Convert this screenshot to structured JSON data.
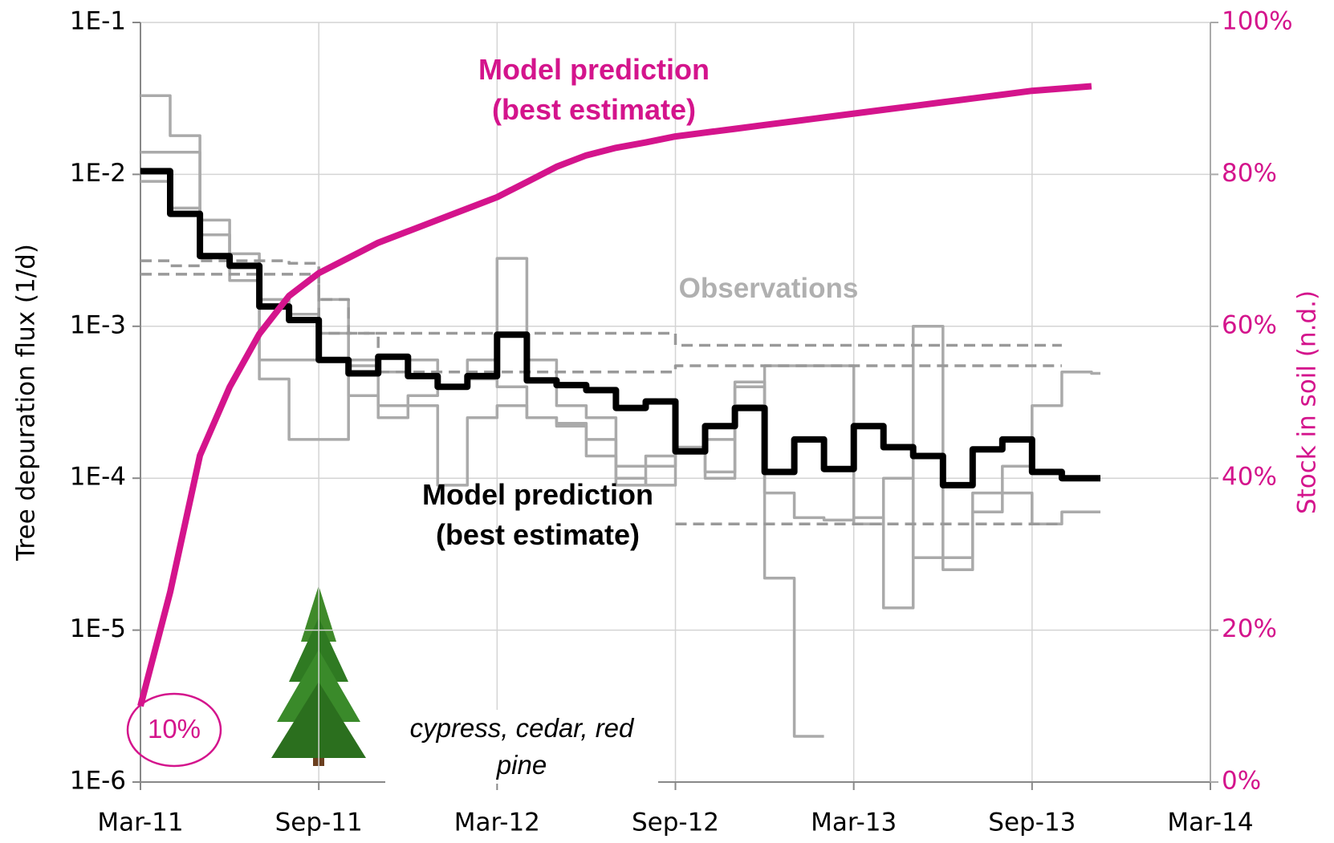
{
  "chart_data": {
    "type": "line",
    "y_label": "Tree depuration  flux (1/d)",
    "y2_label": "Stock in soil (n.d.)",
    "yscale": "log",
    "grid": true,
    "x": [
      "2011-03",
      "2011-04",
      "2011-05",
      "2011-06",
      "2011-07",
      "2011-08",
      "2011-09",
      "2011-10",
      "2011-11",
      "2011-12",
      "2012-01",
      "2012-02",
      "2012-03",
      "2012-04",
      "2012-05",
      "2012-06",
      "2012-07",
      "2012-08",
      "2012-09",
      "2012-10",
      "2012-11",
      "2012-12",
      "2013-01",
      "2013-02",
      "2013-03",
      "2013-04",
      "2013-05",
      "2013-06",
      "2013-07",
      "2013-08",
      "2013-09",
      "2013-10",
      "2013-11"
    ],
    "xlim": [
      "2011-03",
      "2014-03"
    ],
    "xticks": [
      {
        "value": "2011-03",
        "label": "Mar-11"
      },
      {
        "value": "2011-09",
        "label": "Sep-11"
      },
      {
        "value": "2012-03",
        "label": "Mar-12"
      },
      {
        "value": "2012-09",
        "label": "Sep-12"
      },
      {
        "value": "2013-03",
        "label": "Mar-13"
      },
      {
        "value": "2013-09",
        "label": "Sep-13"
      },
      {
        "value": "2014-03",
        "label": "Mar-14"
      }
    ],
    "ylim": [
      1e-06,
      0.1
    ],
    "yticks": [
      {
        "value": 1e-06,
        "label": "1E-6"
      },
      {
        "value": 1e-05,
        "label": "1E-5"
      },
      {
        "value": 0.0001,
        "label": "1E-4"
      },
      {
        "value": 0.001,
        "label": "1E-3"
      },
      {
        "value": 0.01,
        "label": "1E-2"
      },
      {
        "value": 0.1,
        "label": "1E-1"
      }
    ],
    "y2lim": [
      0,
      100
    ],
    "y2ticks": [
      {
        "value": 0,
        "label": "0%"
      },
      {
        "value": 20,
        "label": "20%"
      },
      {
        "value": 40,
        "label": "40%"
      },
      {
        "value": 60,
        "label": "60%"
      },
      {
        "value": 80,
        "label": "80%"
      },
      {
        "value": 100,
        "label": "100%"
      }
    ],
    "series": [
      {
        "color": "#aaaaaa",
        "step": true,
        "dash": false,
        "values": [
          0.014,
          0.014,
          0.005,
          0.003,
          0.0015,
          0.0012,
          0.0009,
          0.0006,
          0.0005,
          0.0006,
          0.0004,
          0.0006,
          0.0028,
          0.0006,
          0.0003,
          0.00025,
          0.00012,
          0.00014,
          0.00015,
          0.0001,
          0.0004,
          2.2e-05,
          2e-06,
          null,
          null,
          null,
          null,
          null,
          null,
          null,
          null,
          null,
          null
        ]
      },
      {
        "color": "#aaaaaa",
        "step": true,
        "dash": false,
        "values": [
          0.033,
          0.018,
          0.004,
          0.0025,
          0.00045,
          0.00018,
          0.00018,
          0.00055,
          0.0003,
          0.0003,
          9e-05,
          0.00025,
          0.0003,
          0.00025,
          0.00022,
          0.00018,
          9e-05,
          0.00012,
          0.00015,
          0.00018,
          0.00043,
          8e-05,
          5.5e-05,
          5.3e-05,
          5.5e-05,
          1.4e-05,
          0.001,
          3e-05,
          8e-05,
          0.00012,
          0.0003,
          0.0005,
          0.00049
        ]
      },
      {
        "color": "#aaaaaa",
        "step": true,
        "dash": false,
        "values": [
          0.009,
          0.006,
          0.004,
          0.002,
          0.0006,
          0.0006,
          0.0015,
          0.00035,
          0.00025,
          0.00035,
          0.0004,
          0.00045,
          0.0004,
          0.00025,
          0.00023,
          0.00014,
          0.0001,
          9e-05,
          0.00016,
          0.00011,
          0.0003,
          0.00055,
          0.00055,
          0.00055,
          5e-05,
          0.0001,
          3e-05,
          2.5e-05,
          6e-05,
          8e-05,
          5e-05,
          6e-05,
          6e-05
        ]
      },
      {
        "color": "#999999",
        "step": true,
        "dash": true,
        "values": [
          0.0027,
          0.0025,
          0.0027,
          0.0027,
          0.0027,
          0.0026,
          0.0015,
          0.0009,
          0.0009,
          0.0009,
          0.0009,
          0.0009,
          0.0009,
          0.0009,
          0.0009,
          0.0009,
          0.0009,
          0.0009,
          0.00075,
          0.00075,
          0.00075,
          0.00075,
          0.00075,
          0.00075,
          0.00075,
          0.00075,
          0.00075,
          0.00075,
          0.00075,
          0.00075,
          0.00075,
          null,
          null
        ]
      },
      {
        "color": "#999999",
        "step": true,
        "dash": true,
        "values": [
          0.0022,
          0.0022,
          0.0022,
          0.0022,
          0.0022,
          0.0022,
          0.0009,
          0.0009,
          0.0005,
          0.0005,
          0.0005,
          0.0005,
          0.0005,
          0.0005,
          0.0005,
          0.0005,
          0.0005,
          0.0005,
          0.00055,
          0.00055,
          0.00055,
          0.00055,
          0.00055,
          0.00055,
          0.00055,
          0.00055,
          0.00055,
          0.00055,
          0.00055,
          0.00055,
          0.00055,
          null,
          null
        ]
      },
      {
        "color": "#999999",
        "step": true,
        "dash": true,
        "values": [
          null,
          null,
          null,
          null,
          null,
          null,
          null,
          null,
          null,
          null,
          null,
          null,
          null,
          null,
          null,
          null,
          null,
          null,
          5e-05,
          5e-05,
          5e-05,
          5e-05,
          5e-05,
          5e-05,
          5e-05,
          5e-05,
          5e-05,
          5e-05,
          5e-05,
          5e-05,
          5e-05,
          null,
          null
        ]
      },
      {
        "color": "#000000",
        "step": true,
        "dash": false,
        "values": [
          0.0105,
          0.0055,
          0.0029,
          0.0025,
          0.00135,
          0.0011,
          0.0006,
          0.00049,
          0.00063,
          0.00047,
          0.0004,
          0.00047,
          0.00088,
          0.00044,
          0.00041,
          0.00038,
          0.00029,
          0.00032,
          0.00015,
          0.00022,
          0.00029,
          0.00011,
          0.00018,
          0.000115,
          0.00022,
          0.00016,
          0.00014,
          9e-05,
          0.000155,
          0.00018,
          0.00011,
          0.0001,
          0.0001
        ]
      },
      {
        "color": "#d4148c",
        "step": false,
        "dash": false,
        "axis": "y2",
        "values": [
          10,
          25,
          43,
          52,
          59,
          64,
          67,
          69,
          71,
          72.5,
          74,
          75.5,
          77,
          79,
          81,
          82.5,
          83.5,
          84.2,
          85,
          85.5,
          86,
          86.5,
          87,
          87.5,
          88,
          88.5,
          89,
          89.5,
          90,
          90.5,
          91,
          91.3,
          91.6
        ]
      }
    ],
    "annotations": [
      {
        "text": "Model prediction (best estimate)",
        "color": "#d4148c"
      },
      {
        "text": "Observations",
        "color": "#b0b0b0"
      },
      {
        "text": "Model prediction (best estimate)",
        "color": "#000000"
      },
      {
        "text": "cypress, cedar, red pine",
        "color": "#000000"
      },
      {
        "text": "10%",
        "color": "#d4148c"
      }
    ]
  }
}
